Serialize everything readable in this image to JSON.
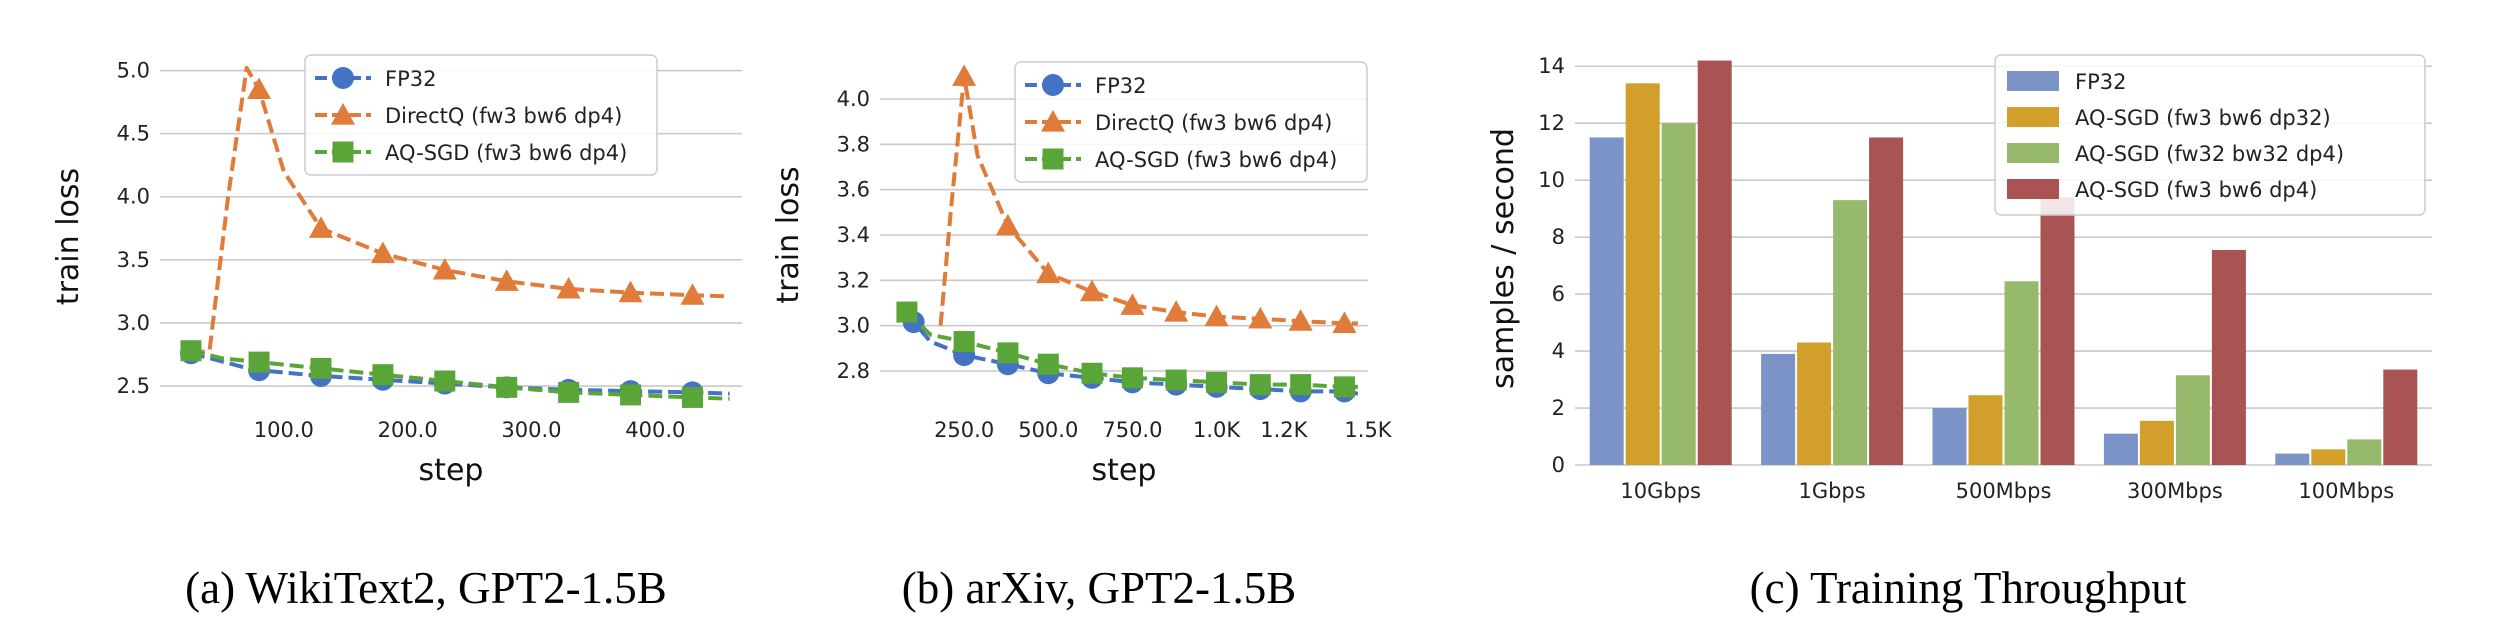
{
  "chart_data": [
    {
      "type": "line",
      "caption": "(a) WikiText2, GPT2-1.5B",
      "xlabel": "step",
      "ylabel": "train loss",
      "xlim": [
        0,
        470
      ],
      "ylim": [
        2.35,
        5.02
      ],
      "xticks": [
        100,
        200,
        300,
        400
      ],
      "xtick_labels": [
        "100.0",
        "200.0",
        "300.0",
        "400.0"
      ],
      "yticks": [
        2.5,
        3.0,
        3.5,
        4.0,
        4.5,
        5.0
      ],
      "ytick_labels": [
        "2.5",
        "3.0",
        "3.5",
        "4.0",
        "4.5",
        "5.0"
      ],
      "legend_position": "top-right",
      "series": [
        {
          "name": "FP32",
          "color": "#4472c4",
          "marker": "circle",
          "x": [
            25,
            75,
            130,
            180,
            230,
            280,
            330,
            380,
            430,
            460
          ],
          "y": [
            2.76,
            2.63,
            2.58,
            2.55,
            2.52,
            2.49,
            2.47,
            2.46,
            2.45,
            2.44
          ],
          "marker_x": [
            25,
            80,
            130,
            180,
            230,
            280,
            330,
            380,
            430
          ]
        },
        {
          "name": "DirectQ (fw3 bw6 dp4)",
          "color": "#e07b39",
          "marker": "triangle",
          "x": [
            25,
            40,
            55,
            70,
            80,
            100,
            130,
            180,
            230,
            280,
            330,
            380,
            430,
            460
          ],
          "y": [
            2.76,
            2.78,
            4.0,
            5.02,
            4.85,
            4.2,
            3.75,
            3.55,
            3.42,
            3.33,
            3.27,
            3.24,
            3.22,
            3.21
          ],
          "marker_x": [
            80,
            130,
            180,
            230,
            280,
            330,
            380,
            430
          ]
        },
        {
          "name": "AQ-SGD (fw3 bw6 dp4)",
          "color": "#5aa537",
          "marker": "square",
          "x": [
            25,
            50,
            80,
            130,
            180,
            230,
            280,
            330,
            380,
            430,
            460
          ],
          "y": [
            2.78,
            2.72,
            2.69,
            2.64,
            2.59,
            2.54,
            2.49,
            2.45,
            2.43,
            2.41,
            2.4
          ],
          "marker_x": [
            25,
            80,
            130,
            180,
            230,
            280,
            330,
            380,
            430
          ]
        }
      ]
    },
    {
      "type": "line",
      "caption": "(b) arXiv, GPT2-1.5B",
      "xlabel": "step",
      "ylabel": "train loss",
      "xlim": [
        0,
        1450
      ],
      "ylim": [
        2.65,
        4.15
      ],
      "xticks": [
        250,
        500,
        750,
        1000,
        1200,
        1450
      ],
      "xtick_labels": [
        "250.0",
        "500.0",
        "750.0",
        "1.0K",
        "1.2K",
        "1.5K"
      ],
      "yticks": [
        2.8,
        3.0,
        3.2,
        3.4,
        3.6,
        3.8,
        4.0
      ],
      "ytick_labels": [
        "2.8",
        "3.0",
        "3.2",
        "3.4",
        "3.6",
        "3.8",
        "4.0"
      ],
      "legend_position": "top-right",
      "series": [
        {
          "name": "FP32",
          "color": "#4472c4",
          "marker": "circle",
          "x": [
            80,
            150,
            250,
            380,
            500,
            630,
            750,
            880,
            1000,
            1130,
            1250,
            1380,
            1420
          ],
          "y": [
            3.05,
            2.93,
            2.87,
            2.83,
            2.79,
            2.77,
            2.75,
            2.74,
            2.73,
            2.72,
            2.71,
            2.71,
            2.7
          ],
          "marker_x": [
            100,
            250,
            380,
            500,
            630,
            750,
            880,
            1000,
            1130,
            1250,
            1380
          ]
        },
        {
          "name": "DirectQ (fw3 bw6 dp4)",
          "color": "#e07b39",
          "marker": "triangle",
          "x": [
            180,
            210,
            250,
            290,
            380,
            500,
            630,
            750,
            880,
            1000,
            1130,
            1250,
            1380,
            1420
          ],
          "y": [
            3.0,
            3.5,
            4.1,
            3.75,
            3.44,
            3.23,
            3.15,
            3.09,
            3.06,
            3.04,
            3.03,
            3.02,
            3.01,
            3.01
          ],
          "marker_x": [
            250,
            380,
            500,
            630,
            750,
            880,
            1000,
            1130,
            1250,
            1380
          ]
        },
        {
          "name": "AQ-SGD (fw3 bw6 dp4)",
          "color": "#5aa537",
          "marker": "square",
          "x": [
            80,
            150,
            250,
            380,
            500,
            630,
            750,
            880,
            1000,
            1130,
            1250,
            1380,
            1420
          ],
          "y": [
            3.06,
            2.96,
            2.93,
            2.88,
            2.83,
            2.79,
            2.77,
            2.76,
            2.75,
            2.74,
            2.74,
            2.73,
            2.73
          ],
          "marker_x": [
            80,
            250,
            380,
            500,
            630,
            750,
            880,
            1000,
            1130,
            1250,
            1380
          ]
        }
      ]
    },
    {
      "type": "bar",
      "caption": "(c) Training Throughput",
      "xlabel": "",
      "ylabel": "samples / second",
      "ylim": [
        0,
        14.5
      ],
      "yticks": [
        0,
        2,
        4,
        6,
        8,
        10,
        12,
        14
      ],
      "ytick_labels": [
        "0",
        "2",
        "4",
        "6",
        "8",
        "10",
        "12",
        "14"
      ],
      "categories": [
        "10Gbps",
        "1Gbps",
        "500Mbps",
        "300Mbps",
        "100Mbps"
      ],
      "legend_position": "top-right",
      "series": [
        {
          "name": "FP32",
          "color": "#7b93c6",
          "values": [
            11.5,
            3.9,
            2.0,
            1.1,
            0.4
          ]
        },
        {
          "name": "AQ-SGD (fw3 bw6 dp32)",
          "color": "#d19f2a",
          "values": [
            13.4,
            4.3,
            2.45,
            1.55,
            0.55
          ]
        },
        {
          "name": "AQ-SGD (fw32 bw32 dp4)",
          "color": "#97b96b",
          "values": [
            12.0,
            9.3,
            6.45,
            3.15,
            0.9
          ]
        },
        {
          "name": "AQ-SGD (fw3 bw6 dp4)",
          "color": "#a95452",
          "values": [
            14.2,
            11.5,
            9.4,
            7.55,
            3.35
          ]
        }
      ]
    }
  ]
}
